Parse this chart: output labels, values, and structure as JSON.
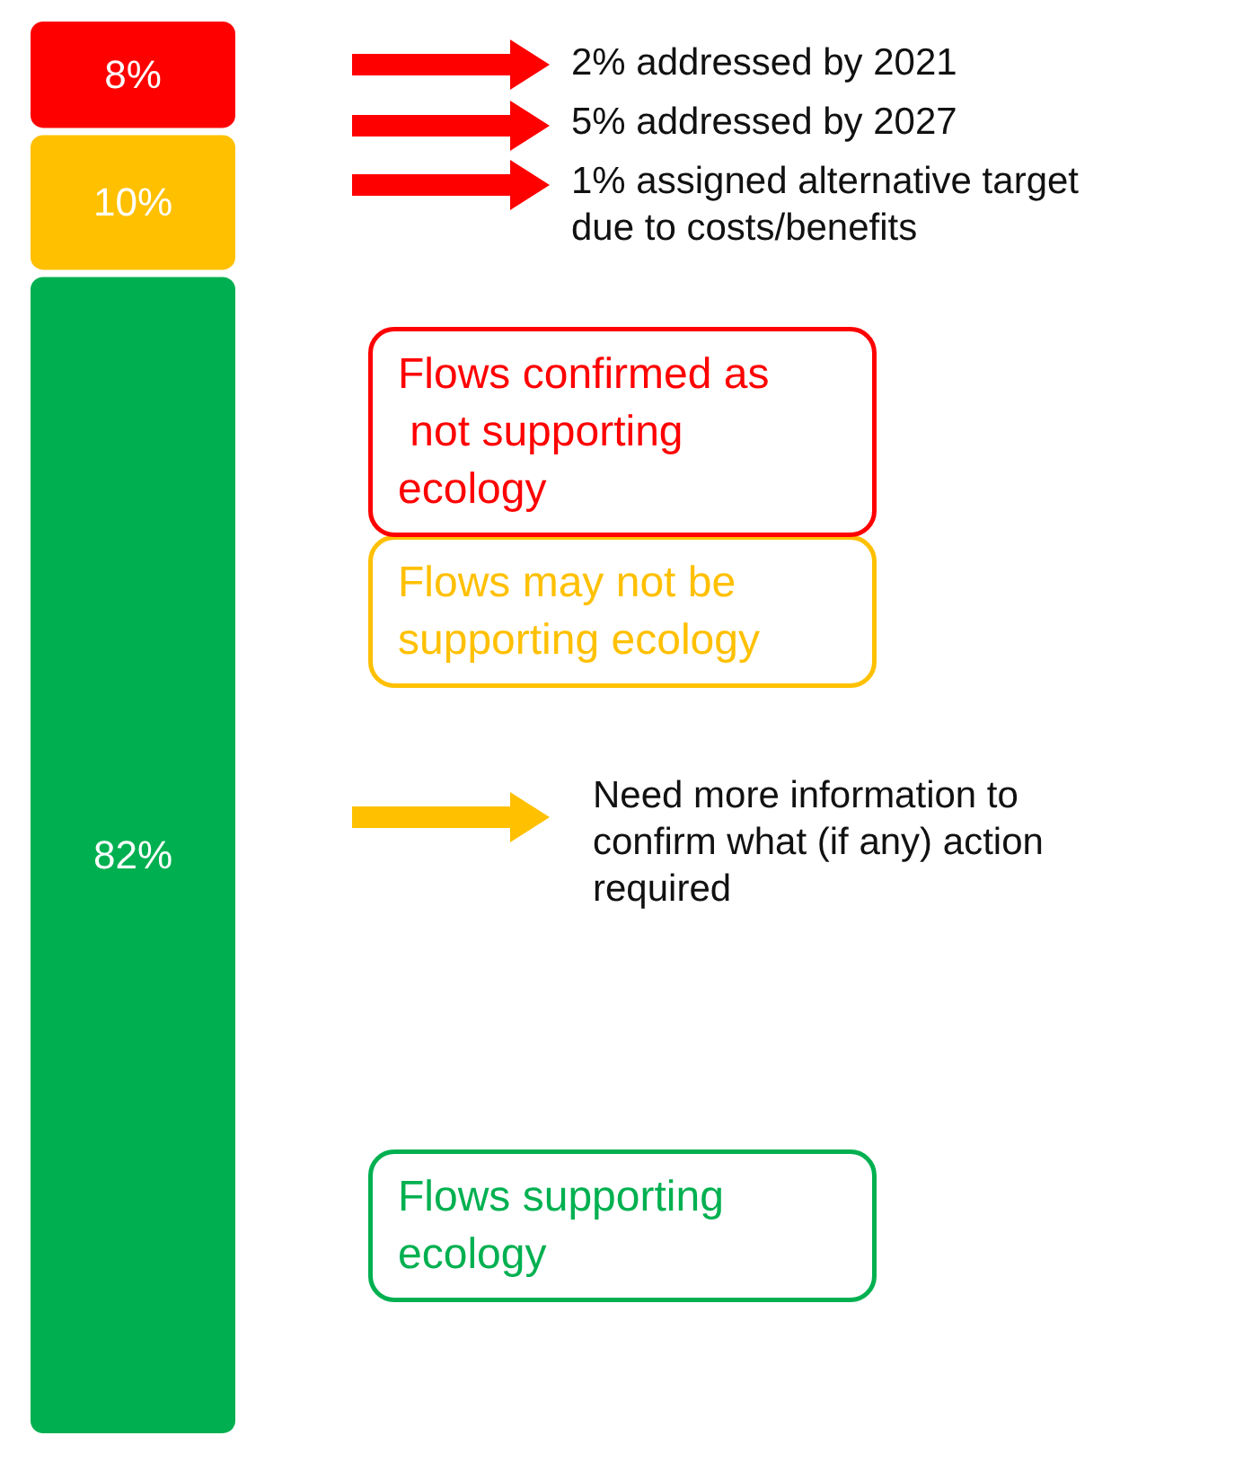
{
  "chart_data": {
    "type": "bar",
    "stacked": true,
    "tick_labels": false,
    "categories": [
      null
    ],
    "series": [
      {
        "name": "Flows supporting ecology",
        "color": "#00b050",
        "values": [
          82
        ],
        "value_labels": [
          "82%"
        ]
      },
      {
        "name": "Flows may not be supporting ecology",
        "color": "#ffc000",
        "values": [
          10
        ],
        "value_labels": [
          "10%"
        ]
      },
      {
        "name": "Flows confirmed as not supporting ecology",
        "color": "#ff0000",
        "values": [
          8
        ],
        "value_labels": [
          "8%"
        ]
      }
    ],
    "annotations": [
      "2% addressed by 2021",
      "5% addressed by 2027",
      "1% assigned alternative target due to costs/benefits",
      "Need more information to confirm what (if any) action required"
    ]
  }
}
